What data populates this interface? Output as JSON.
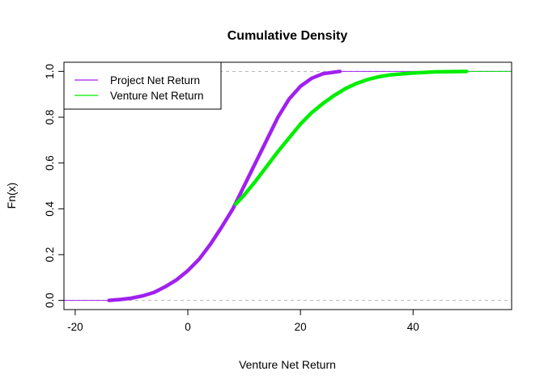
{
  "chart_data": {
    "type": "line",
    "title": "Cumulative Density",
    "xlabel": "Venture Net Return",
    "ylabel": "Fn(x)",
    "xlim": [
      -22,
      57.5
    ],
    "ylim": [
      -0.04,
      1.04
    ],
    "x_ticks": [
      -20,
      0,
      20,
      40
    ],
    "y_ticks": [
      0.0,
      0.2,
      0.4,
      0.6,
      0.8,
      1.0
    ],
    "y_tick_labels": [
      "0.0",
      "0.2",
      "0.4",
      "0.6",
      "0.8",
      "1.0"
    ],
    "reference_lines": [
      0,
      1
    ],
    "legend_position": "top-left",
    "series": [
      {
        "name": "Project Net Return",
        "color": "#A020F0",
        "points": [
          [
            -14,
            0.0
          ],
          [
            -12,
            0.004
          ],
          [
            -10,
            0.01
          ],
          [
            -8,
            0.02
          ],
          [
            -6,
            0.035
          ],
          [
            -4,
            0.06
          ],
          [
            -2,
            0.09
          ],
          [
            0,
            0.13
          ],
          [
            2,
            0.18
          ],
          [
            4,
            0.245
          ],
          [
            6,
            0.32
          ],
          [
            8,
            0.4
          ],
          [
            10,
            0.5
          ],
          [
            12,
            0.6
          ],
          [
            14,
            0.7
          ],
          [
            16,
            0.8
          ],
          [
            18,
            0.88
          ],
          [
            20,
            0.935
          ],
          [
            22,
            0.97
          ],
          [
            24,
            0.99
          ],
          [
            27,
            1.0
          ]
        ]
      },
      {
        "name": "Venture Net Return",
        "color": "#00EE00",
        "points": [
          [
            8.5,
            0.42
          ],
          [
            10,
            0.46
          ],
          [
            12,
            0.52
          ],
          [
            14,
            0.585
          ],
          [
            16,
            0.65
          ],
          [
            18,
            0.71
          ],
          [
            20,
            0.77
          ],
          [
            22,
            0.82
          ],
          [
            24,
            0.86
          ],
          [
            26,
            0.895
          ],
          [
            28,
            0.925
          ],
          [
            30,
            0.948
          ],
          [
            32,
            0.965
          ],
          [
            34,
            0.977
          ],
          [
            36,
            0.985
          ],
          [
            40,
            0.993
          ],
          [
            44,
            0.998
          ],
          [
            49.5,
            1.0
          ]
        ]
      }
    ]
  }
}
